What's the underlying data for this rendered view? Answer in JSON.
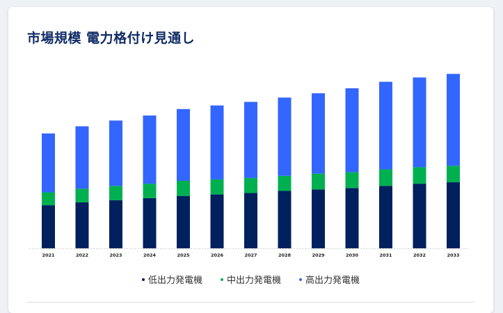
{
  "page": {
    "title": "市場規模 電力格付け見通し"
  },
  "colors": {
    "low": "#00205e",
    "mid": "#00b050",
    "high": "#3366ff"
  },
  "chart_data": {
    "type": "bar",
    "stacked": true,
    "title": "市場規模 電力格付け見通し",
    "categories": [
      "2021",
      "2022",
      "2023",
      "2024",
      "2025",
      "2026",
      "2027",
      "2028",
      "2029",
      "2030",
      "2031",
      "2032",
      "2033"
    ],
    "series": [
      {
        "name": "低出力発電機",
        "values": [
          60,
          64,
          67,
          70,
          73,
          75,
          77,
          80,
          82,
          84,
          87,
          90,
          92
        ]
      },
      {
        "name": "中出力発電機",
        "values": [
          18,
          19,
          20,
          20,
          21,
          21,
          21,
          21,
          22,
          22,
          23,
          23,
          23
        ]
      },
      {
        "name": "高出力発電機",
        "values": [
          82,
          87,
          91,
          95,
          100,
          103,
          106,
          109,
          112,
          117,
          122,
          125,
          128
        ]
      }
    ],
    "ylim": [
      0,
      250
    ],
    "grid": false,
    "legend": "bottom-center"
  }
}
